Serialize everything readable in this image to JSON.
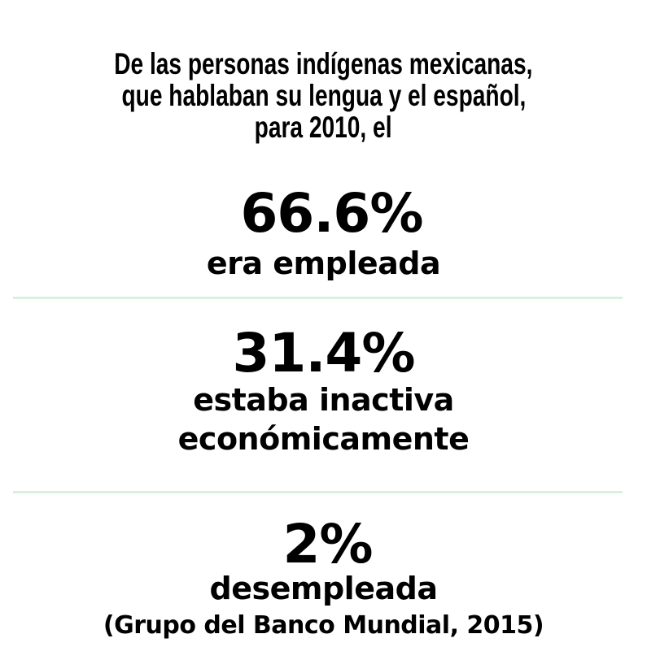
{
  "intro": [
    "De las personas indígenas mexicanas,",
    "que hablaban su lengua y el español,",
    "para 2010, el"
  ],
  "stats": [
    {
      "value": "66.6%",
      "label": [
        "era empleada"
      ]
    },
    {
      "value": "31.4%",
      "label": [
        "estaba inactiva",
        "económicamente"
      ]
    },
    {
      "value": "2%",
      "label": [
        "desempleada"
      ]
    }
  ],
  "source": "(Grupo del Banco Mundial, 2015)",
  "colors": {
    "divider": "#d8f0e0",
    "text": "#000000"
  }
}
